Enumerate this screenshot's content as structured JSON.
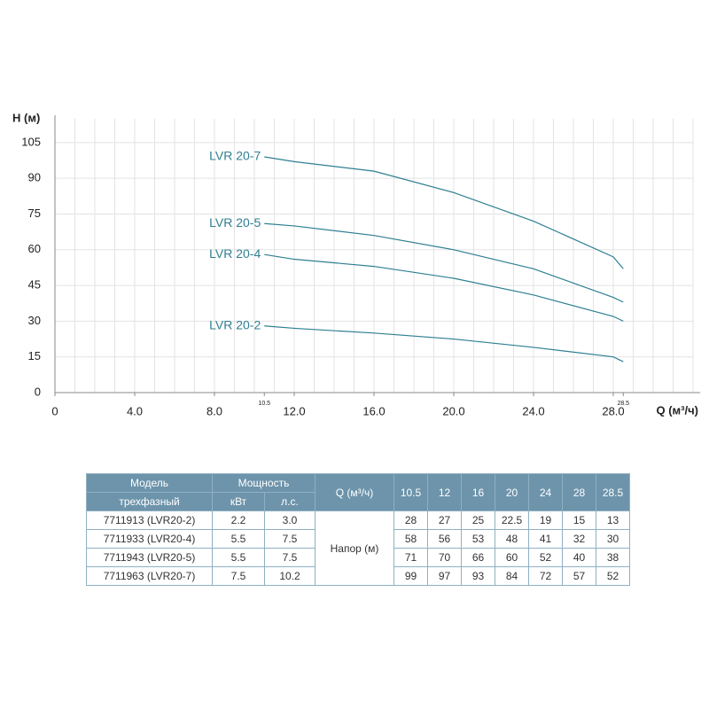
{
  "chart_data": {
    "type": "line",
    "y_label": "H (м)",
    "x_label": "Q (м³/ч)",
    "x": [
      10.5,
      12,
      16,
      20,
      24,
      28,
      28.5
    ],
    "series": [
      {
        "name": "LVR 20-2",
        "color": "#2e7f92",
        "values": [
          28,
          27,
          25,
          22.5,
          19,
          15,
          13
        ]
      },
      {
        "name": "LVR 20-4",
        "color": "#2e7f92",
        "values": [
          58,
          56,
          53,
          48,
          41,
          32,
          30
        ]
      },
      {
        "name": "LVR 20-5",
        "color": "#2e7f92",
        "values": [
          71,
          70,
          66,
          60,
          52,
          40,
          38
        ]
      },
      {
        "name": "LVR 20-7",
        "color": "#2e7f92",
        "values": [
          99,
          97,
          93,
          84,
          72,
          57,
          52
        ]
      }
    ],
    "xlim": [
      0,
      32
    ],
    "ylim": [
      0,
      115
    ],
    "xticks": [
      0,
      {
        "value": 4,
        "label": "4.0"
      },
      {
        "value": 8,
        "label": "8.0"
      },
      10.5,
      {
        "value": 12,
        "label": "12.0"
      },
      {
        "value": 16,
        "label": "16.0"
      },
      {
        "value": 20,
        "label": "20.0"
      },
      {
        "value": 24,
        "label": "24.0"
      },
      {
        "value": 28,
        "label": "28.0"
      },
      28.5
    ],
    "yticks": [
      0,
      15,
      30,
      45,
      60,
      75,
      90,
      105
    ],
    "grid": true
  },
  "table": {
    "header": [
      "Модель",
      "Мощность",
      "Q (м³/ч)"
    ],
    "subheader": [
      "трехфазный",
      "кВт",
      "л.с."
    ],
    "span_label": "Напор (м)",
    "rows": [
      {
        "model": "7711913 (LVR20-2)",
        "kw": "2.2",
        "hp": "3.0"
      },
      {
        "model": "7711933 (LVR20-4)",
        "kw": "5.5",
        "hp": "7.5"
      },
      {
        "model": "7711943 (LVR20-5)",
        "kw": "5.5",
        "hp": "7.5"
      },
      {
        "model": "7711963 (LVR20-7)",
        "kw": "7.5",
        "hp": "10.2"
      }
    ]
  }
}
